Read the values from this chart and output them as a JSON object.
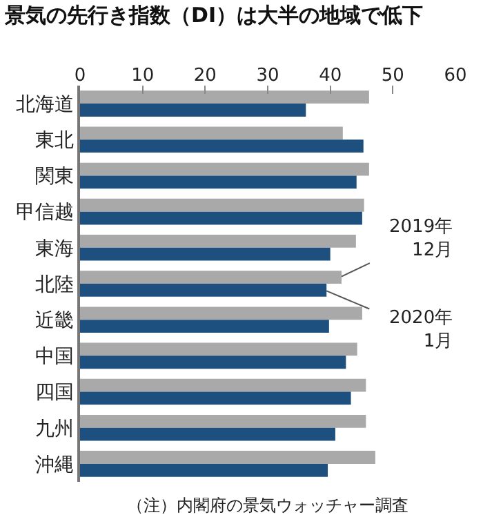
{
  "chart_data": {
    "type": "bar",
    "orientation": "horizontal",
    "title": "景気の先行き指数（DI）は大半の地域で低下",
    "categories": [
      "北海道",
      "東北",
      "関東",
      "甲信越",
      "東海",
      "北陸",
      "近畿",
      "中国",
      "四国",
      "九州",
      "沖縄"
    ],
    "series": [
      {
        "name": "2019年\n12月",
        "color": "#a9a9a9",
        "values": [
          46.2,
          42.0,
          46.2,
          45.4,
          44.1,
          41.8,
          45.1,
          44.3,
          45.7,
          45.7,
          47.2
        ]
      },
      {
        "name": "2020年\n1月",
        "color": "#1d4f7f",
        "values": [
          36.1,
          45.3,
          44.2,
          45.1,
          40.0,
          39.4,
          39.8,
          42.5,
          43.3,
          40.8,
          39.6
        ]
      }
    ],
    "xlim": [
      0,
      60
    ],
    "xticks": [
      0,
      10,
      20,
      30,
      40,
      50,
      60
    ],
    "grid": false,
    "annotations": [
      "（注）内閣府の景気ウォッチャー調査"
    ]
  }
}
